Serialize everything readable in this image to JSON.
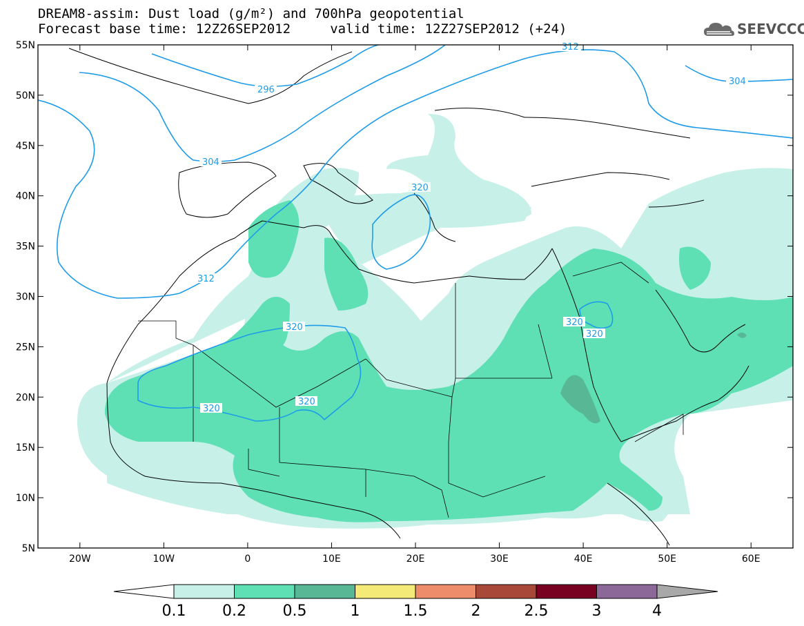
{
  "title": {
    "line1": "DREAM8-assim: Dust load (g/m²) and 700hPa geopotential",
    "line2": "Forecast base time: 12Z26SEP2012     valid time: 12Z27SEP2012 (+24)"
  },
  "logo": {
    "text": "SEEVCCC",
    "icon": "cloud-icon"
  },
  "map": {
    "lat_labels": [
      "55N",
      "50N",
      "45N",
      "40N",
      "35N",
      "30N",
      "25N",
      "20N",
      "15N",
      "10N",
      "5N"
    ],
    "lon_labels": [
      "20W",
      "10W",
      "0",
      "10E",
      "20E",
      "30E",
      "40E",
      "50E",
      "60E"
    ],
    "extent": {
      "lon": [
        -25,
        65
      ],
      "lat": [
        5,
        55
      ]
    },
    "contour_color": "#1e9be8",
    "contour_labels": [
      "296",
      "304",
      "312",
      "304",
      "320",
      "312",
      "320",
      "320",
      "320",
      "320",
      "304"
    ]
  },
  "colorbar": {
    "levels": [
      "0.1",
      "0.2",
      "0.5",
      "1",
      "1.5",
      "2",
      "2.5",
      "3",
      "4"
    ],
    "colors": [
      "#c6f0e8",
      "#5ee0b4",
      "#58b896",
      "#f3ea78",
      "#ec8c6a",
      "#a84838",
      "#780020",
      "#8c6898",
      "#a8a8a8"
    ]
  }
}
